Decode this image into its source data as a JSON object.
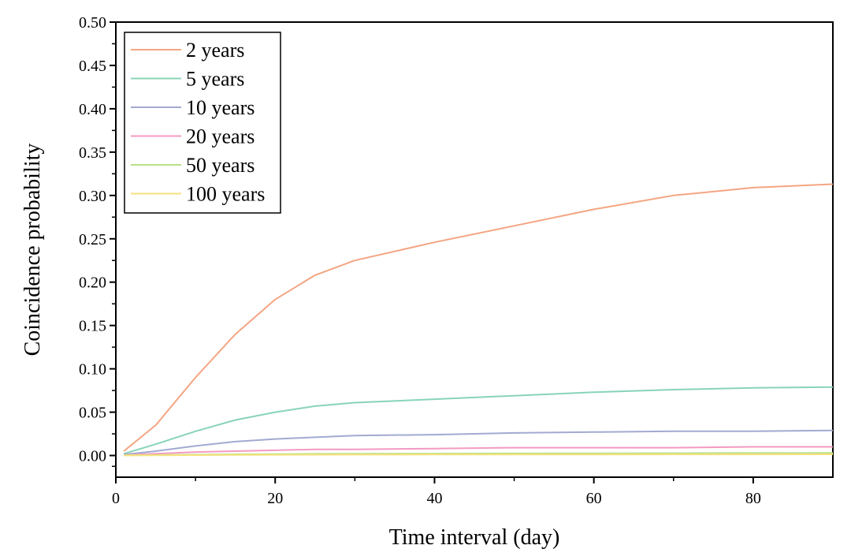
{
  "chart_data": {
    "type": "line",
    "title": "",
    "xlabel": "Time interval (day)",
    "ylabel": "Coincidence probability",
    "xlim": [
      0,
      90
    ],
    "ylim": [
      -0.025,
      0.5
    ],
    "xticks": [
      0,
      20,
      40,
      60,
      80
    ],
    "xtick_labels": [
      "0",
      "20",
      "40",
      "60",
      "80"
    ],
    "yticks": [
      0.0,
      0.05,
      0.1,
      0.15,
      0.2,
      0.25,
      0.3,
      0.35,
      0.4,
      0.45,
      0.5
    ],
    "ytick_labels": [
      "0.00",
      "0.05",
      "0.10",
      "0.15",
      "0.20",
      "0.25",
      "0.30",
      "0.35",
      "0.40",
      "0.45",
      "0.50"
    ],
    "grid": false,
    "legend_position": "top-left",
    "x": [
      1,
      5,
      10,
      15,
      20,
      25,
      30,
      40,
      50,
      60,
      70,
      80,
      90
    ],
    "series": [
      {
        "name": "2 years",
        "color": "#f4a582",
        "values": [
          0.005,
          0.035,
          0.09,
          0.14,
          0.18,
          0.208,
          0.225,
          0.246,
          0.265,
          0.284,
          0.3,
          0.309,
          0.313
        ]
      },
      {
        "name": "5 years",
        "color": "#88d4b7",
        "values": [
          0.002,
          0.013,
          0.028,
          0.041,
          0.05,
          0.057,
          0.061,
          0.065,
          0.069,
          0.073,
          0.076,
          0.078,
          0.079
        ]
      },
      {
        "name": "10 years",
        "color": "#a3aad0",
        "values": [
          0.001,
          0.005,
          0.011,
          0.016,
          0.019,
          0.021,
          0.023,
          0.024,
          0.026,
          0.027,
          0.028,
          0.028,
          0.029
        ]
      },
      {
        "name": "20 years",
        "color": "#f49ac2",
        "values": [
          0.0005,
          0.002,
          0.004,
          0.005,
          0.006,
          0.007,
          0.007,
          0.008,
          0.009,
          0.009,
          0.009,
          0.01,
          0.01
        ]
      },
      {
        "name": "50 years",
        "color": "#b8e186",
        "values": [
          0.0002,
          0.0006,
          0.001,
          0.0014,
          0.0017,
          0.0019,
          0.002,
          0.0022,
          0.0024,
          0.0026,
          0.0027,
          0.0028,
          0.0029
        ]
      },
      {
        "name": "100 years",
        "color": "#f6e27f",
        "values": [
          0.0001,
          0.0003,
          0.0005,
          0.0007,
          0.0008,
          0.0009,
          0.001,
          0.0011,
          0.0012,
          0.0012,
          0.0013,
          0.0013,
          0.0014
        ]
      }
    ]
  }
}
